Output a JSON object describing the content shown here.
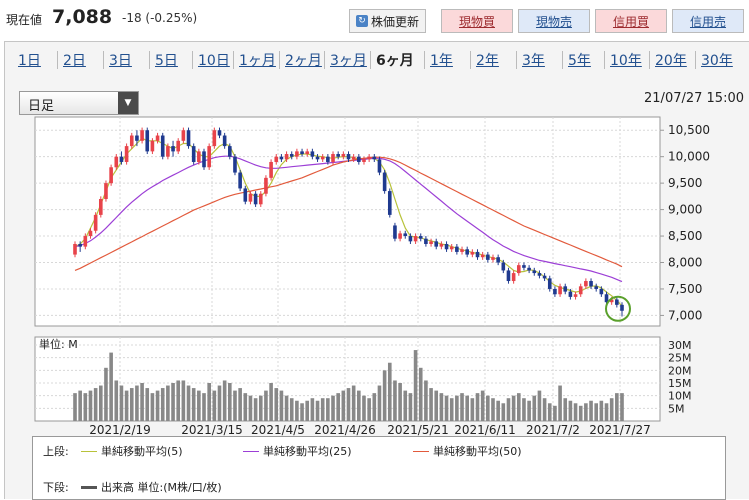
{
  "header": {
    "price_label": "現在値",
    "price": "7,088",
    "change": "-18 (-0.25%)",
    "refresh_label": "株価更新",
    "buttons": [
      {
        "label": "現物買",
        "style": "pink"
      },
      {
        "label": "現物売",
        "style": "blue"
      },
      {
        "label": "信用買",
        "style": "pink"
      },
      {
        "label": "信用売",
        "style": "blue"
      }
    ]
  },
  "tabs": [
    "1日",
    "2日",
    "3日",
    "5日",
    "10日",
    "1ヶ月",
    "2ヶ月",
    "3ヶ月",
    "6ヶ月",
    "1年",
    "2年",
    "3年",
    "5年",
    "10年",
    "20年",
    "30年"
  ],
  "active_tab": "6ヶ月",
  "selector": {
    "value": "日足"
  },
  "datetime": "21/07/27 15:00",
  "colors": {
    "up": "#e8434a",
    "down": "#1f3a8f",
    "ma5": "#b8c23a",
    "ma25": "#9c3fd6",
    "ma50": "#e25a3c",
    "volume": "#888888",
    "highlight": "#5aa02c"
  },
  "chart_data": {
    "type": "candlestick",
    "x_tick_labels": [
      "2021/2/19",
      "2021/3/15",
      "2021/4/5",
      "2021/4/26",
      "2021/5/21",
      "2021/6/11",
      "2021/7/2",
      "2021/7/27"
    ],
    "price_ticks": [
      "10,500",
      "10,000",
      "9,500",
      "9,000",
      "8,500",
      "8,000",
      "7,500",
      "7,000"
    ],
    "ylim": [
      6800,
      10750
    ],
    "candles": [
      [
        8150,
        8350,
        8100,
        8400
      ],
      [
        8350,
        8300,
        8200,
        8400
      ],
      [
        8300,
        8500,
        8250,
        8550
      ],
      [
        8500,
        8600,
        8450,
        8650
      ],
      [
        8600,
        8900,
        8550,
        8950
      ],
      [
        8900,
        9200,
        8850,
        9250
      ],
      [
        9200,
        9500,
        9150,
        9550
      ],
      [
        9500,
        9800,
        9450,
        9850
      ],
      [
        9800,
        10000,
        9750,
        10050
      ],
      [
        10000,
        9900,
        9850,
        10100
      ],
      [
        9900,
        10200,
        9850,
        10250
      ],
      [
        10200,
        10400,
        10150,
        10450
      ],
      [
        10400,
        10300,
        10200,
        10500
      ],
      [
        10300,
        10500,
        10250,
        10550
      ],
      [
        10500,
        10100,
        10050,
        10550
      ],
      [
        10100,
        10300,
        10050,
        10350
      ],
      [
        10300,
        10400,
        10250,
        10450
      ],
      [
        10400,
        10000,
        9950,
        10450
      ],
      [
        10000,
        10200,
        9950,
        10250
      ],
      [
        10200,
        10100,
        10000,
        10300
      ],
      [
        10100,
        10300,
        10050,
        10350
      ],
      [
        10300,
        10500,
        10250,
        10550
      ],
      [
        10500,
        10200,
        10150,
        10550
      ],
      [
        10200,
        9900,
        9850,
        10250
      ],
      [
        9900,
        10100,
        9850,
        10150
      ],
      [
        10100,
        9800,
        9750,
        10150
      ],
      [
        9800,
        10200,
        9750,
        10250
      ],
      [
        10200,
        10500,
        10150,
        10550
      ],
      [
        10500,
        10400,
        10350,
        10550
      ],
      [
        10400,
        10200,
        10150,
        10450
      ],
      [
        10200,
        10000,
        9950,
        10250
      ],
      [
        10000,
        9700,
        9650,
        10050
      ],
      [
        9700,
        9400,
        9350,
        9750
      ],
      [
        9400,
        9150,
        9100,
        9450
      ],
      [
        9150,
        9300,
        9100,
        9350
      ],
      [
        9300,
        9100,
        9050,
        9350
      ],
      [
        9100,
        9300,
        9050,
        9350
      ],
      [
        9300,
        9600,
        9250,
        9650
      ],
      [
        9600,
        9900,
        9550,
        9950
      ],
      [
        9900,
        10000,
        9850,
        10050
      ],
      [
        10000,
        9950,
        9900,
        10050
      ],
      [
        9950,
        10050,
        9900,
        10100
      ],
      [
        10050,
        10000,
        9950,
        10100
      ],
      [
        10000,
        10100,
        9950,
        10150
      ],
      [
        10100,
        10050,
        10000,
        10150
      ],
      [
        10050,
        10100,
        10000,
        10150
      ],
      [
        10100,
        10000,
        9950,
        10150
      ],
      [
        10000,
        9950,
        9900,
        10050
      ],
      [
        9950,
        10000,
        9900,
        10050
      ],
      [
        10000,
        9900,
        9850,
        10050
      ],
      [
        9900,
        10050,
        9850,
        10100
      ],
      [
        10050,
        10000,
        9950,
        10100
      ],
      [
        10000,
        10050,
        9950,
        10100
      ],
      [
        10050,
        9950,
        9900,
        10100
      ],
      [
        9950,
        10000,
        9900,
        10050
      ],
      [
        10000,
        9900,
        9850,
        10050
      ],
      [
        9900,
        9950,
        9850,
        10000
      ],
      [
        9950,
        10000,
        9900,
        10050
      ],
      [
        10000,
        9950,
        9900,
        10050
      ],
      [
        9950,
        9700,
        9650,
        10000
      ],
      [
        9700,
        9350,
        9300,
        9750
      ],
      [
        9350,
        8900,
        8850,
        9400
      ],
      [
        8700,
        8450,
        8400,
        8750
      ],
      [
        8450,
        8550,
        8400,
        8600
      ],
      [
        8550,
        8500,
        8450,
        8600
      ],
      [
        8500,
        8400,
        8350,
        8550
      ],
      [
        8400,
        8500,
        8350,
        8550
      ],
      [
        8500,
        8450,
        8400,
        8550
      ],
      [
        8450,
        8350,
        8300,
        8500
      ],
      [
        8350,
        8400,
        8300,
        8450
      ],
      [
        8400,
        8300,
        8250,
        8450
      ],
      [
        8300,
        8350,
        8250,
        8400
      ],
      [
        8350,
        8250,
        8200,
        8400
      ],
      [
        8250,
        8300,
        8200,
        8350
      ],
      [
        8300,
        8200,
        8150,
        8350
      ],
      [
        8200,
        8250,
        8150,
        8300
      ],
      [
        8250,
        8150,
        8100,
        8300
      ],
      [
        8150,
        8200,
        8100,
        8250
      ],
      [
        8200,
        8100,
        8050,
        8250
      ],
      [
        8100,
        8150,
        8050,
        8200
      ],
      [
        8150,
        8050,
        8000,
        8200
      ],
      [
        8050,
        8100,
        8000,
        8150
      ],
      [
        8100,
        8000,
        7950,
        8150
      ],
      [
        8000,
        7850,
        7800,
        8050
      ],
      [
        7850,
        7650,
        7600,
        7900
      ],
      [
        7650,
        7800,
        7600,
        7850
      ],
      [
        7800,
        7950,
        7750,
        8000
      ],
      [
        7950,
        7900,
        7850,
        8000
      ],
      [
        7900,
        7850,
        7800,
        7950
      ],
      [
        7850,
        7800,
        7750,
        7900
      ],
      [
        7800,
        7750,
        7700,
        7850
      ],
      [
        7750,
        7700,
        7650,
        7800
      ],
      [
        7700,
        7500,
        7450,
        7750
      ],
      [
        7500,
        7400,
        7350,
        7550
      ],
      [
        7400,
        7550,
        7350,
        7600
      ],
      [
        7550,
        7450,
        7400,
        7600
      ],
      [
        7450,
        7350,
        7300,
        7500
      ],
      [
        7350,
        7400,
        7300,
        7450
      ],
      [
        7400,
        7550,
        7350,
        7600
      ],
      [
        7550,
        7650,
        7500,
        7700
      ],
      [
        7650,
        7550,
        7500,
        7700
      ],
      [
        7550,
        7500,
        7450,
        7600
      ],
      [
        7500,
        7400,
        7350,
        7550
      ],
      [
        7400,
        7250,
        7200,
        7450
      ],
      [
        7250,
        7300,
        7200,
        7350
      ],
      [
        7300,
        7200,
        7150,
        7350
      ],
      [
        7200,
        7088,
        6980,
        7250
      ]
    ],
    "series": [
      {
        "name": "単純移動平均(5)",
        "key": "ma5",
        "values": [
          8300,
          8350,
          8450,
          8650,
          8850,
          9100,
          9350,
          9600,
          9750,
          9900,
          10050,
          10150,
          10250,
          10350,
          10300,
          10300,
          10300,
          10250,
          10200,
          10150,
          10200,
          10250,
          10250,
          10150,
          10050,
          10000,
          10000,
          10100,
          10200,
          10250,
          10200,
          10000,
          9750,
          9500,
          9300,
          9250,
          9250,
          9350,
          9500,
          9700,
          9850,
          9950,
          10000,
          10030,
          10050,
          10050,
          10030,
          10010,
          10000,
          9980,
          9970,
          9990,
          10000,
          10000,
          9980,
          9960,
          9950,
          9960,
          9970,
          9900,
          9750,
          9500,
          9200,
          8900,
          8650,
          8500,
          8480,
          8470,
          8430,
          8410,
          8380,
          8350,
          8330,
          8300,
          8270,
          8240,
          8220,
          8190,
          8170,
          8140,
          8110,
          8090,
          8060,
          8010,
          7930,
          7850,
          7820,
          7830,
          7860,
          7850,
          7800,
          7730,
          7640,
          7570,
          7530,
          7500,
          7470,
          7440,
          7460,
          7510,
          7550,
          7560,
          7520,
          7440,
          7370,
          7280,
          7180
        ]
      },
      {
        "name": "単純移動平均(25)",
        "key": "ma25",
        "values": [
          8300,
          8320,
          8360,
          8410,
          8480,
          8560,
          8650,
          8750,
          8850,
          8950,
          9050,
          9140,
          9220,
          9300,
          9370,
          9430,
          9490,
          9550,
          9600,
          9650,
          9700,
          9750,
          9800,
          9840,
          9880,
          9920,
          9950,
          9980,
          10000,
          10010,
          10010,
          9990,
          9960,
          9920,
          9880,
          9840,
          9810,
          9790,
          9780,
          9780,
          9790,
          9800,
          9810,
          9820,
          9830,
          9840,
          9850,
          9860,
          9870,
          9880,
          9890,
          9900,
          9910,
          9920,
          9930,
          9940,
          9950,
          9960,
          9970,
          9970,
          9950,
          9920,
          9870,
          9800,
          9720,
          9640,
          9560,
          9480,
          9400,
          9320,
          9240,
          9160,
          9080,
          9000,
          8920,
          8850,
          8780,
          8710,
          8640,
          8570,
          8500,
          8430,
          8370,
          8310,
          8260,
          8210,
          8170,
          8130,
          8100,
          8070,
          8040,
          8020,
          8000,
          7980,
          7960,
          7940,
          7920,
          7900,
          7880,
          7860,
          7840,
          7810,
          7780,
          7750,
          7720,
          7680,
          7640
        ]
      },
      {
        "name": "単純移動平均(50)",
        "key": "ma50",
        "values": [
          7850,
          7890,
          7940,
          7990,
          8040,
          8090,
          8140,
          8190,
          8240,
          8290,
          8340,
          8390,
          8440,
          8490,
          8540,
          8590,
          8640,
          8690,
          8740,
          8790,
          8840,
          8890,
          8940,
          8990,
          9030,
          9070,
          9110,
          9150,
          9190,
          9230,
          9260,
          9290,
          9310,
          9330,
          9350,
          9370,
          9390,
          9410,
          9430,
          9450,
          9480,
          9510,
          9540,
          9570,
          9600,
          9640,
          9680,
          9720,
          9760,
          9800,
          9840,
          9870,
          9900,
          9920,
          9940,
          9960,
          9970,
          9980,
          9990,
          9990,
          9980,
          9960,
          9930,
          9890,
          9840,
          9790,
          9740,
          9690,
          9640,
          9590,
          9540,
          9490,
          9440,
          9390,
          9340,
          9290,
          9240,
          9190,
          9140,
          9090,
          9040,
          8990,
          8940,
          8890,
          8840,
          8790,
          8740,
          8690,
          8650,
          8610,
          8570,
          8530,
          8490,
          8450,
          8410,
          8370,
          8330,
          8290,
          8250,
          8210,
          8170,
          8130,
          8090,
          8050,
          8010,
          7970,
          7920
        ]
      },
      {
        "name": "出来高 単位:(M株/口/枚)",
        "key": "volume",
        "values": [
          11,
          12,
          11,
          12,
          13,
          14,
          21,
          27,
          16,
          14,
          12,
          13,
          14,
          15,
          13,
          11,
          12,
          13,
          14,
          15,
          16,
          16,
          14,
          13,
          12,
          11,
          15,
          12,
          14,
          16,
          15,
          12,
          13,
          11,
          10,
          9,
          10,
          12,
          15,
          13,
          12,
          10,
          9,
          8,
          7,
          8,
          9,
          8,
          9,
          9,
          10,
          11,
          12,
          13,
          14,
          12,
          10,
          9,
          11,
          14,
          20,
          23,
          16,
          15,
          12,
          11,
          28,
          21,
          16,
          13,
          12,
          11,
          10,
          9,
          10,
          11,
          10,
          9,
          11,
          12,
          10,
          9,
          8,
          7,
          9,
          10,
          11,
          9,
          8,
          10,
          12,
          9,
          7,
          6,
          14,
          9,
          8,
          7,
          6,
          7,
          8,
          7,
          8,
          7,
          9,
          11,
          11
        ]
      }
    ],
    "volume_ticks": [
      "30M",
      "25M",
      "20M",
      "15M",
      "10M",
      "5M"
    ],
    "volume_unit_label": "単位: M",
    "volume_max": 30
  },
  "legend": {
    "upper_label": "上段:",
    "lower_label": "下段:"
  }
}
